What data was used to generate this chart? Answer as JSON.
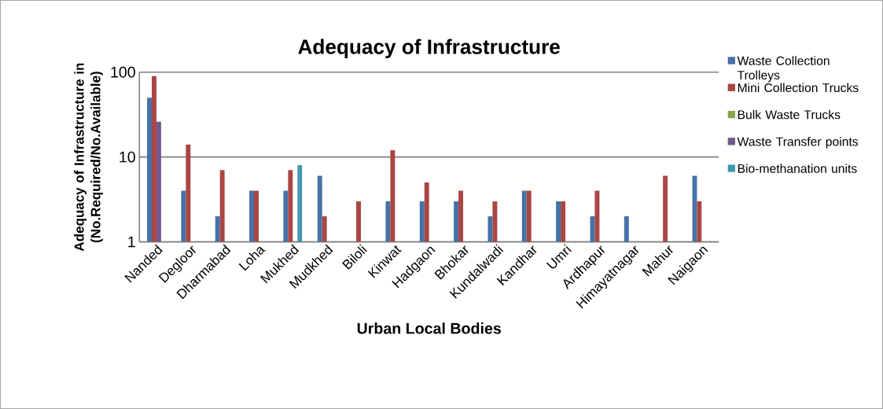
{
  "chart_data": {
    "type": "bar",
    "title": "Adequacy of Infrastructure",
    "xlabel": "Urban Local Bodies",
    "ylabel": "Adequacy of Infrastructure in (No.Required/No.Available)",
    "categories": [
      "Nanded",
      "Degloor",
      "Dharmabad",
      "Loha",
      "Mukhed",
      "Mudkhed",
      "Biloli",
      "Kinwat",
      "Hadgaon",
      "Bhokar",
      "Kundalwadi",
      "Kandhar",
      "Umri",
      "Ardhapur",
      "Himayatnagar",
      "Mahur",
      "Naigaon"
    ],
    "series": [
      {
        "name": "Waste Collection Trolleys",
        "color": "#4572a7",
        "values": [
          50,
          4,
          2,
          4,
          4,
          6,
          null,
          3,
          3,
          3,
          2,
          4,
          3,
          2,
          2,
          null,
          6
        ]
      },
      {
        "name": "Mini Collection Trucks",
        "color": "#aa4643",
        "values": [
          90,
          14,
          7,
          4,
          7,
          2,
          3,
          12,
          5,
          4,
          3,
          4,
          3,
          4,
          null,
          6,
          3
        ]
      },
      {
        "name": "Bulk Waste Trucks",
        "color": "#89a54e",
        "values": [
          null,
          null,
          null,
          null,
          null,
          null,
          null,
          null,
          null,
          null,
          null,
          null,
          null,
          null,
          null,
          null,
          null
        ]
      },
      {
        "name": "Waste Transfer points",
        "color": "#71588f",
        "values": [
          26,
          null,
          null,
          null,
          null,
          null,
          null,
          null,
          null,
          null,
          null,
          null,
          null,
          null,
          null,
          null,
          null
        ]
      },
      {
        "name": "Bio-methanation units",
        "color": "#4198af",
        "values": [
          null,
          null,
          null,
          null,
          8,
          null,
          null,
          null,
          null,
          null,
          null,
          null,
          null,
          null,
          null,
          null,
          null
        ]
      }
    ],
    "log": "y",
    "ylim": [
      1,
      100
    ],
    "yticks": [
      1,
      10,
      100
    ],
    "grid": "y",
    "legend": "right"
  }
}
